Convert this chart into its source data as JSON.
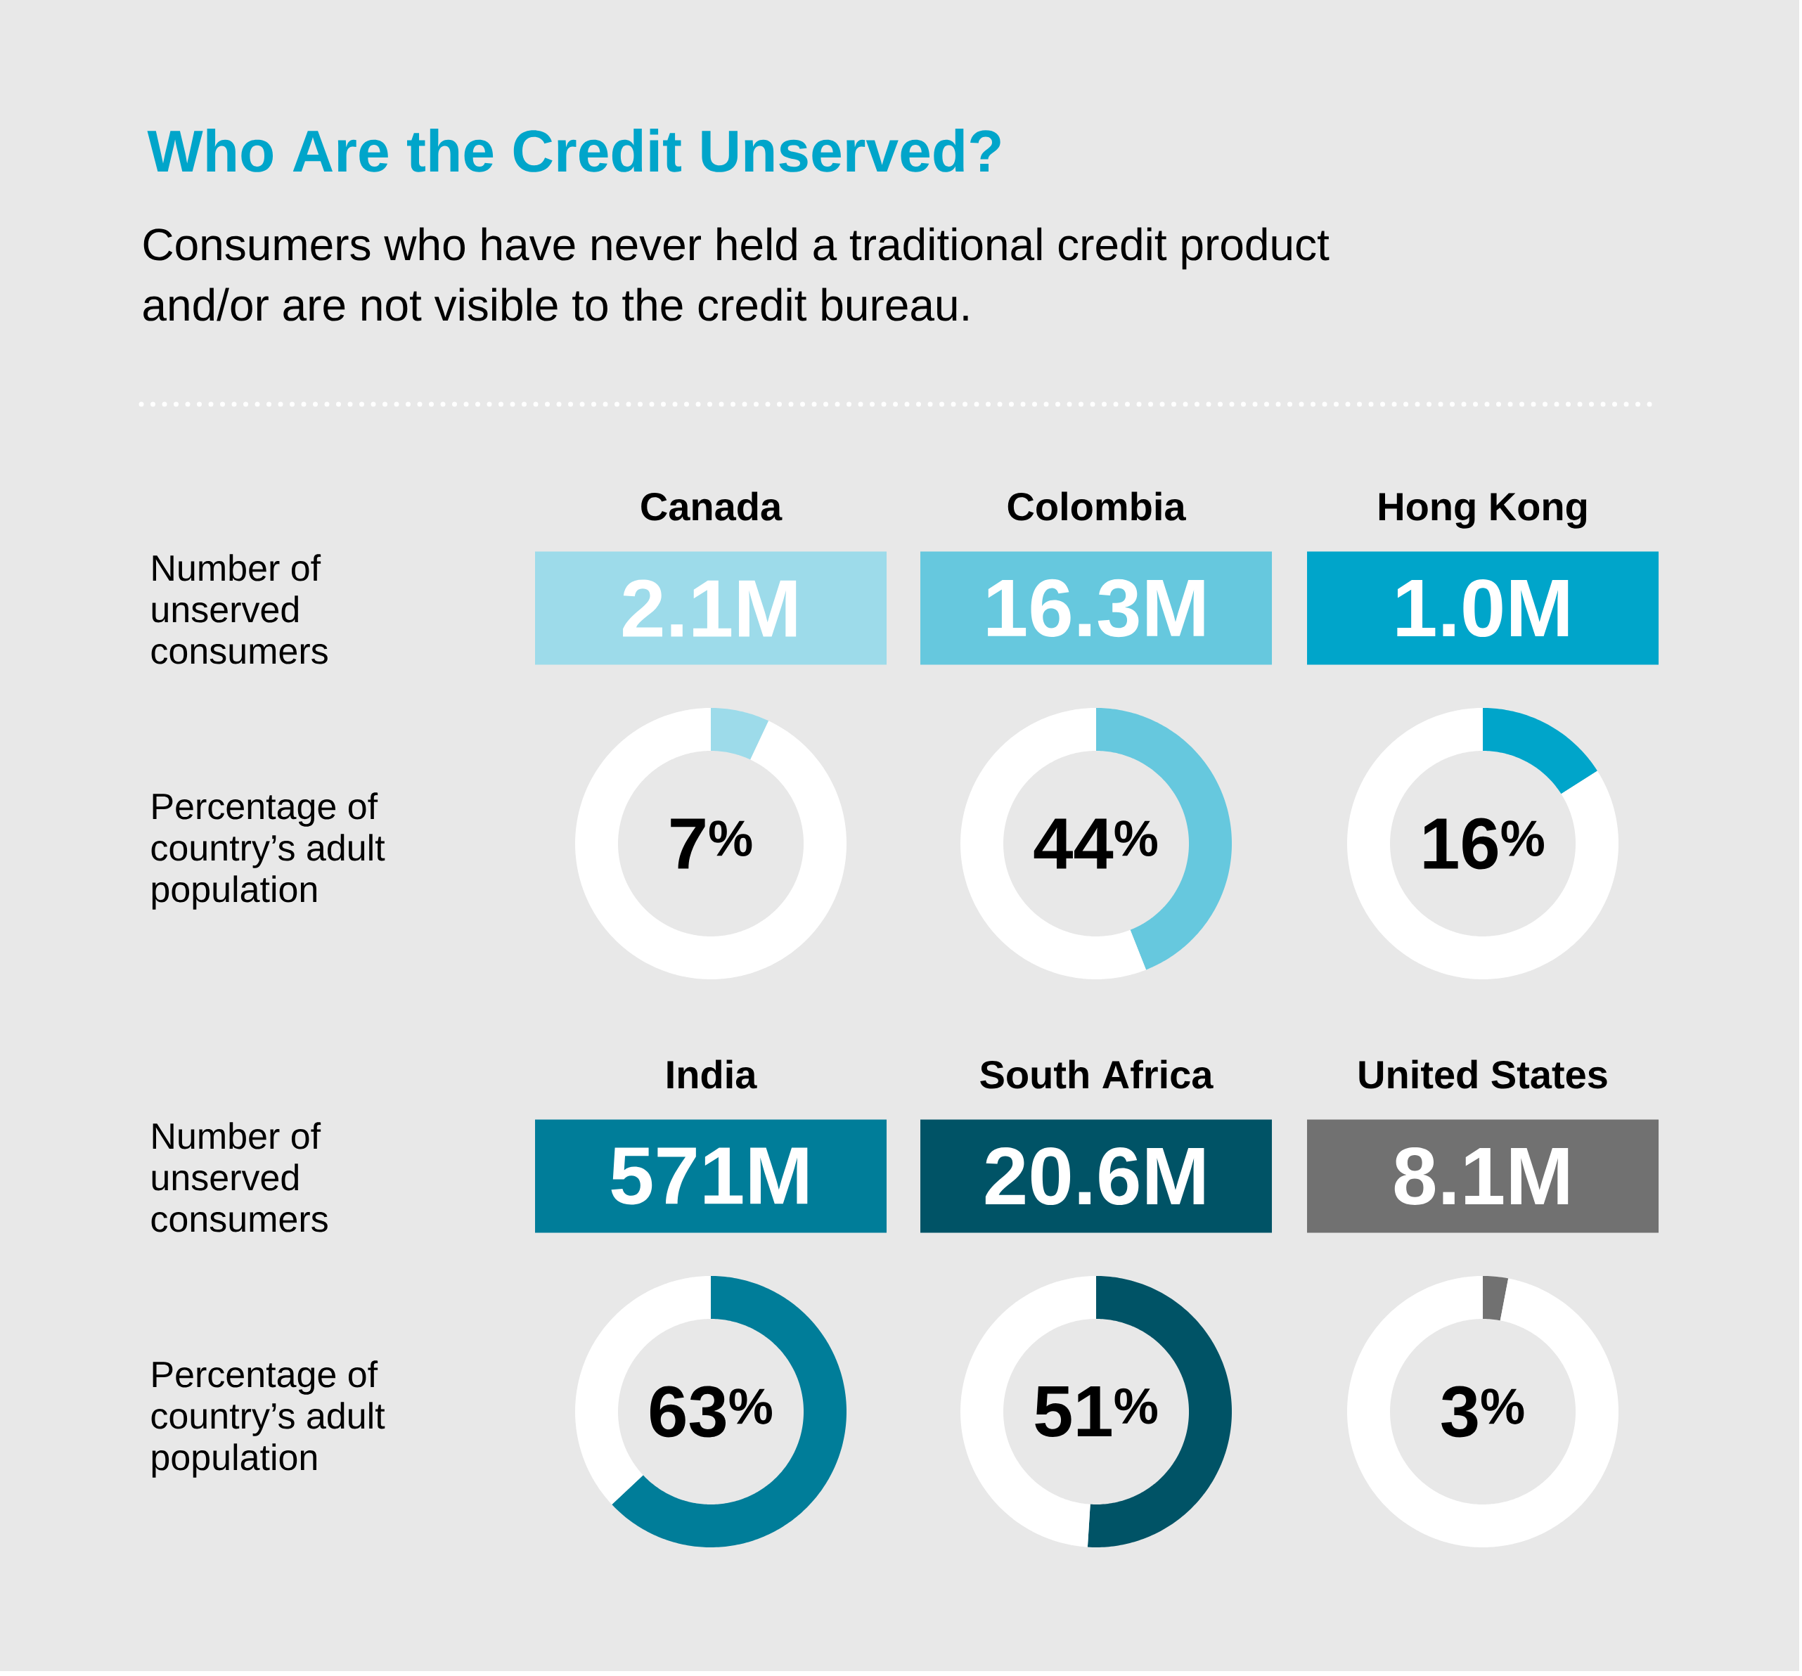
{
  "chart_data": [
    {
      "type": "other",
      "title": "Who Are the Credit Unserved?",
      "subtitle": "Consumers who have never held a traditional credit product and/or are not visible to the credit bureau.",
      "annotations": [
        "Number of unserved consumers",
        "Percentage of country’s adult population",
        "Number of unserved consumers",
        "Percentage of country’s adult population"
      ]
    },
    {
      "type": "donut",
      "title": "Canada",
      "categories": [
        null,
        null
      ],
      "values": [
        7,
        93
      ],
      "colors": [
        "#9ddbea",
        "#ffffff"
      ],
      "annotations": [
        "2.1M",
        "7$^{%}$"
      ]
    },
    {
      "type": "donut",
      "title": "Colombia",
      "categories": [
        null,
        null
      ],
      "values": [
        44,
        56
      ],
      "colors": [
        "#66c8de",
        "#ffffff"
      ],
      "annotations": [
        "16.3M",
        "44$^{%}$"
      ]
    },
    {
      "type": "donut",
      "title": "Hong Kong",
      "categories": [
        null,
        null
      ],
      "values": [
        16,
        84
      ],
      "colors": [
        "#00a5ca",
        "#ffffff"
      ],
      "annotations": [
        "1.0M",
        "16$^{%}$"
      ]
    },
    {
      "type": "donut",
      "title": "India",
      "categories": [
        null,
        null
      ],
      "values": [
        63,
        37
      ],
      "colors": [
        "#007d99",
        "#ffffff"
      ],
      "annotations": [
        "571M",
        "63$^{%}$"
      ]
    },
    {
      "type": "donut",
      "title": "South Africa",
      "categories": [
        null,
        null
      ],
      "values": [
        51,
        49
      ],
      "colors": [
        "#005366",
        "#ffffff"
      ],
      "annotations": [
        "20.6M",
        "51$^{%}$"
      ]
    },
    {
      "type": "donut",
      "title": "United States",
      "categories": [
        null,
        null
      ],
      "values": [
        3,
        97
      ],
      "colors": [
        "#717171",
        "#ffffff"
      ],
      "annotations": [
        "8.1M",
        "3$^{%}$"
      ]
    }
  ]
}
